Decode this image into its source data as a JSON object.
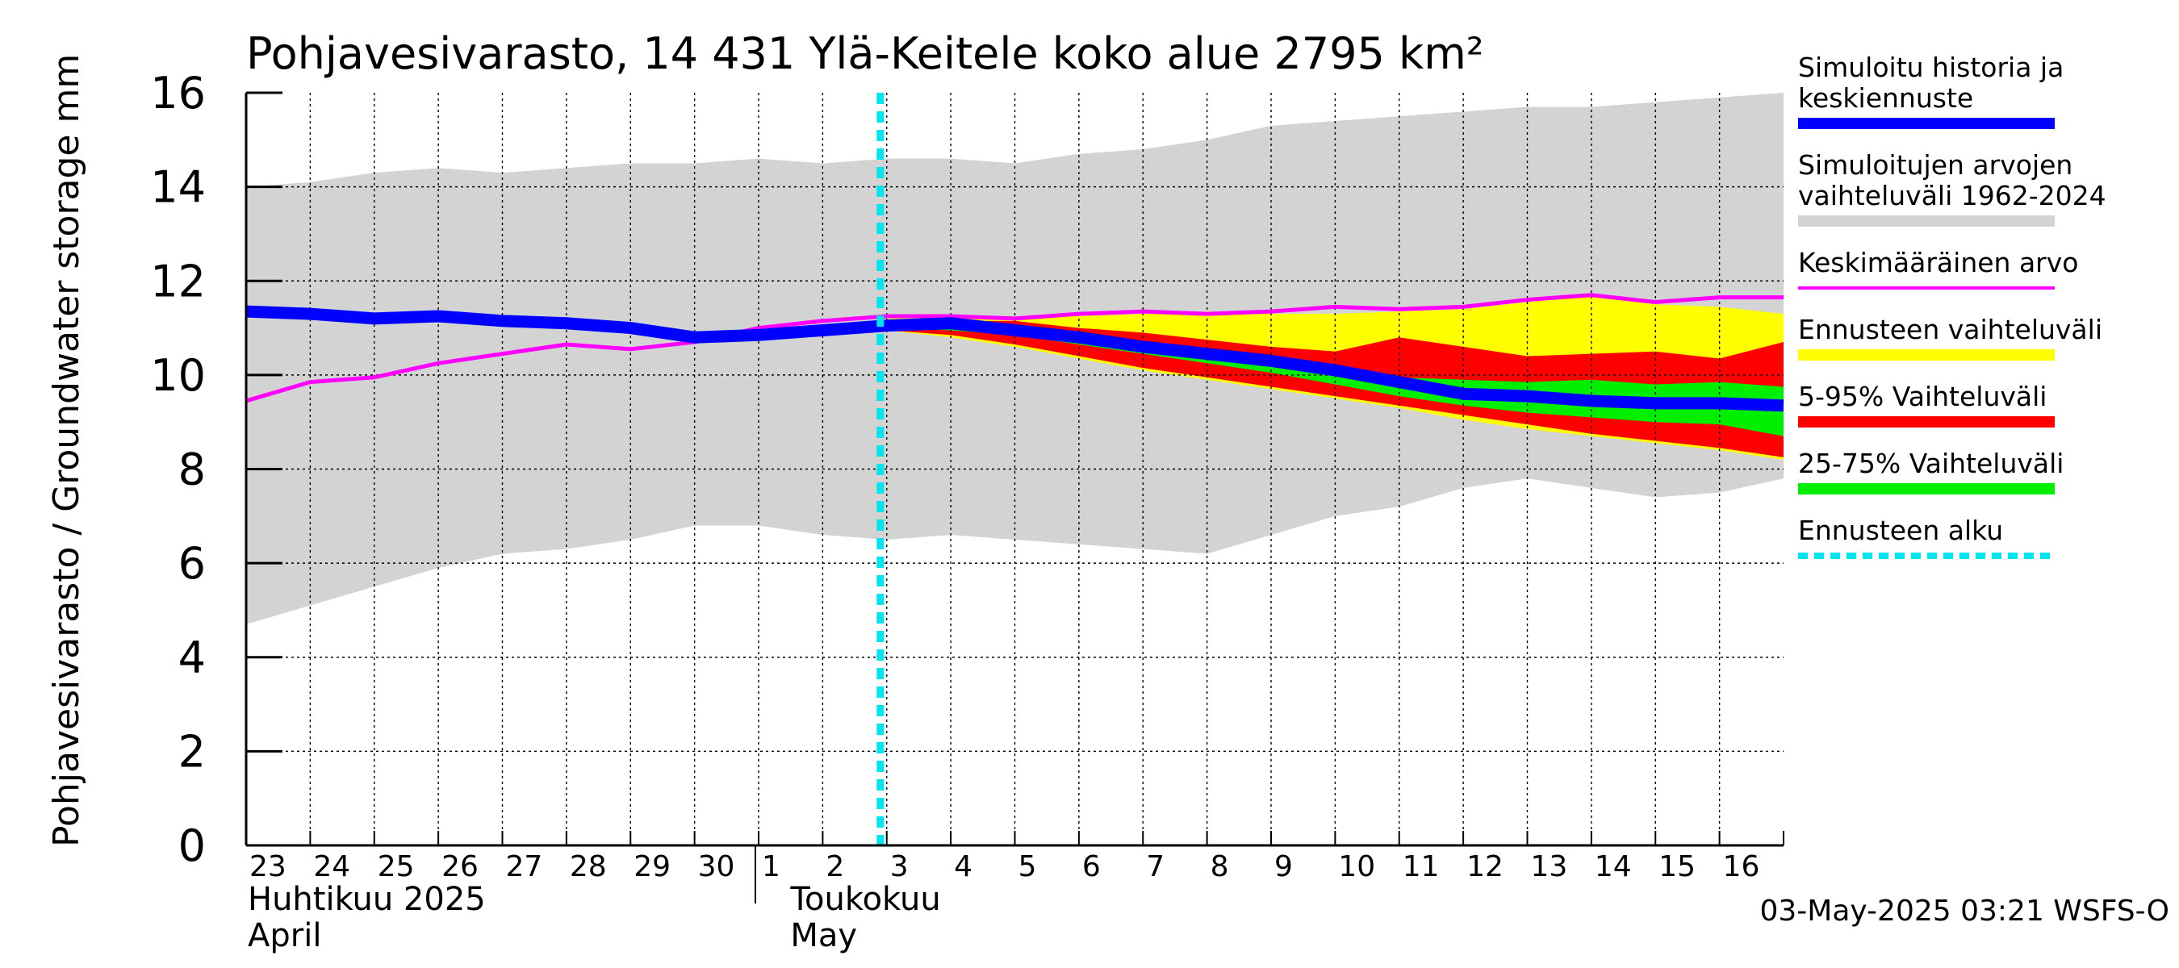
{
  "chart_data": {
    "type": "area",
    "title": "Pohjavesivarasto, 14 431 Ylä-Keitele koko alue 2795 km²",
    "ylabel": "Pohjavesivarasto / Groundwater storage   mm",
    "ylim": [
      0,
      16
    ],
    "yticks": [
      "0",
      "2",
      "4",
      "6",
      "8",
      "10",
      "12",
      "14",
      "16"
    ],
    "grid": true,
    "legend_position": "right",
    "x_day_labels": [
      "23",
      "24",
      "25",
      "26",
      "27",
      "28",
      "29",
      "30",
      "1",
      "2",
      "3",
      "4",
      "5",
      "6",
      "7",
      "8",
      "9",
      "10",
      "11",
      "12",
      "13",
      "14",
      "15",
      "16"
    ],
    "month_labels": [
      {
        "line1": "Huhtikuu  2025",
        "line2": "April"
      },
      {
        "line1": "Toukokuu",
        "line2": "May"
      }
    ],
    "forecast_start_day_index": 10,
    "timestamp": "03-May-2025 03:21 WSFS-O",
    "colors": {
      "history_range": "#d3d3d3",
      "forecast_range": "#ffff00",
      "p5_95": "#ff0000",
      "p25_75": "#00ee00",
      "history_median": "#0000ff",
      "mean": "#ff00ff",
      "forecast_start": "#00e5ee"
    },
    "x": [
      0,
      1,
      2,
      3,
      4,
      5,
      6,
      7,
      8,
      9,
      10,
      11,
      12,
      13,
      14,
      15,
      16,
      17,
      18,
      19,
      20,
      21,
      22,
      23,
      24
    ],
    "series": [
      {
        "name": "Simulolitujen arvojen vaihteluväli 1962-2024",
        "key": "history_range",
        "lower": [
          4.7,
          5.1,
          5.5,
          5.9,
          6.2,
          6.3,
          6.5,
          6.8,
          6.8,
          6.6,
          6.5,
          6.6,
          6.5,
          6.4,
          6.3,
          6.2,
          6.6,
          7.0,
          7.2,
          7.6,
          7.8,
          7.6,
          7.4,
          7.5,
          7.8
        ],
        "upper": [
          14.0,
          14.1,
          14.3,
          14.4,
          14.3,
          14.4,
          14.5,
          14.5,
          14.6,
          14.5,
          14.6,
          14.6,
          14.5,
          14.7,
          14.8,
          15.0,
          15.3,
          15.4,
          15.5,
          15.6,
          15.7,
          15.7,
          15.8,
          15.9,
          16.0
        ]
      },
      {
        "name": "Ennusteen vaihteluväli",
        "key": "forecast_range",
        "x": [
          10,
          11,
          12,
          13,
          14,
          15,
          16,
          17,
          18,
          19,
          20,
          21,
          22,
          23,
          24
        ],
        "lower": [
          10.95,
          10.8,
          10.6,
          10.35,
          10.1,
          9.9,
          9.7,
          9.5,
          9.3,
          9.05,
          8.85,
          8.7,
          8.55,
          8.4,
          8.2
        ],
        "upper": [
          11.2,
          11.25,
          11.25,
          11.25,
          11.3,
          11.35,
          11.3,
          11.3,
          11.35,
          11.4,
          11.55,
          11.7,
          11.5,
          11.45,
          11.3
        ]
      },
      {
        "name": "5-95% Vaihteluväli",
        "key": "p5_95",
        "x": [
          10,
          11,
          12,
          13,
          14,
          15,
          16,
          17,
          18,
          19,
          20,
          21,
          22,
          23,
          24
        ],
        "lower": [
          10.95,
          10.85,
          10.65,
          10.4,
          10.15,
          9.95,
          9.75,
          9.55,
          9.35,
          9.15,
          8.95,
          8.75,
          8.6,
          8.45,
          8.25
        ],
        "upper": [
          11.15,
          11.15,
          11.15,
          11.0,
          10.9,
          10.75,
          10.6,
          10.5,
          10.8,
          10.6,
          10.4,
          10.45,
          10.5,
          10.35,
          10.7
        ]
      },
      {
        "name": "25-75% Vaihteluväli",
        "key": "p25_75",
        "x": [
          10,
          11,
          12,
          13,
          14,
          15,
          16,
          17,
          18,
          19,
          20,
          21,
          22,
          23,
          24
        ],
        "lower": [
          11.0,
          10.95,
          10.85,
          10.65,
          10.45,
          10.25,
          10.05,
          9.8,
          9.55,
          9.35,
          9.2,
          9.1,
          9.0,
          8.95,
          8.7
        ],
        "upper": [
          11.1,
          11.1,
          11.05,
          10.85,
          10.65,
          10.5,
          10.35,
          10.1,
          9.95,
          9.9,
          9.85,
          9.9,
          9.8,
          9.85,
          9.75
        ]
      },
      {
        "name": "Simuloitu historia ja keskiennuste",
        "key": "history_median",
        "values": [
          11.35,
          11.3,
          11.2,
          11.25,
          11.15,
          11.1,
          11.0,
          10.8,
          10.85,
          10.95,
          11.05,
          11.1,
          10.95,
          10.8,
          10.6,
          10.45,
          10.3,
          10.1,
          9.85,
          9.6,
          9.55,
          9.45,
          9.4,
          9.4,
          9.35
        ]
      },
      {
        "name": "Keskimääräinen arvo",
        "key": "mean",
        "values": [
          9.45,
          9.85,
          9.95,
          10.25,
          10.45,
          10.65,
          10.55,
          10.7,
          11.0,
          11.15,
          11.25,
          11.25,
          11.2,
          11.3,
          11.35,
          11.3,
          11.35,
          11.45,
          11.4,
          11.45,
          11.6,
          11.7,
          11.55,
          11.65,
          11.65
        ]
      }
    ]
  },
  "legend": [
    {
      "label": "Simuloitu historia ja keskiennuste",
      "color": "#0000ff",
      "style": "solid"
    },
    {
      "label": "Simuloitujen arvojen vaihteluväli 1962-2024",
      "color": "#d3d3d3",
      "style": "solid"
    },
    {
      "label": "Keskimääräinen arvo",
      "color": "#ff00ff",
      "style": "thin"
    },
    {
      "label": "Ennusteen vaihteluväli",
      "color": "#ffff00",
      "style": "solid"
    },
    {
      "label": "5-95% Vaihteluväli",
      "color": "#ff0000",
      "style": "solid"
    },
    {
      "label": "25-75% Vaihteluväli",
      "color": "#00ee00",
      "style": "solid"
    },
    {
      "label": "Ennusteen alku",
      "color": "#00e5ee",
      "style": "dotted"
    }
  ]
}
